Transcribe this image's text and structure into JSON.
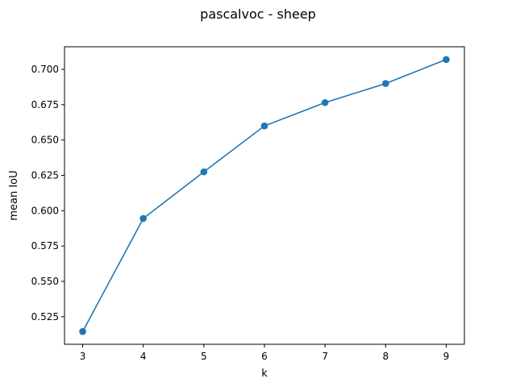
{
  "chart_data": {
    "type": "line",
    "title": "pascalvoc - sheep",
    "xlabel": "k",
    "ylabel": "mean IoU",
    "x": [
      3,
      4,
      5,
      6,
      7,
      8,
      9
    ],
    "series": [
      {
        "values": [
          0.5145,
          0.5945,
          0.6275,
          0.66,
          0.6765,
          0.69,
          0.707
        ]
      }
    ],
    "xlim": [
      2.7,
      9.3
    ],
    "ylim": [
      0.5055,
      0.716
    ],
    "xticks": [
      "3",
      "4",
      "5",
      "6",
      "7",
      "8",
      "9"
    ],
    "xtick_values": [
      3,
      4,
      5,
      6,
      7,
      8,
      9
    ],
    "yticks": [
      "0.525",
      "0.550",
      "0.575",
      "0.600",
      "0.625",
      "0.650",
      "0.675",
      "0.700"
    ],
    "ytick_values": [
      0.525,
      0.55,
      0.575,
      0.6,
      0.625,
      0.65,
      0.675,
      0.7
    ],
    "grid": false,
    "line_color": "#1f77b4",
    "marker": "circle"
  }
}
